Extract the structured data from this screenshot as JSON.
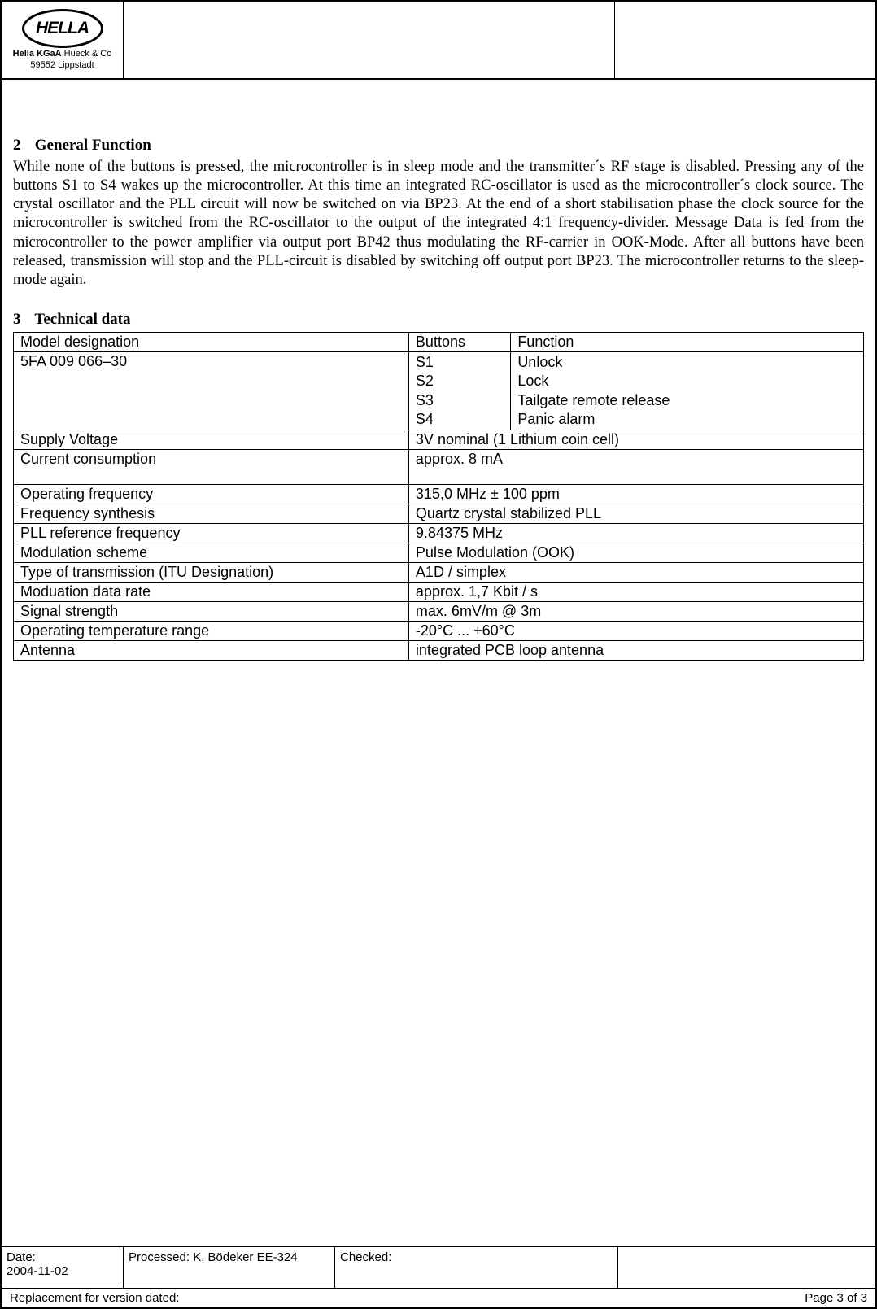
{
  "header": {
    "logo_label": "HELLA",
    "company_line1_bold": "Hella KGaA",
    "company_line1_rest": " Hueck & Co",
    "company_line2": "59552 Lippstadt"
  },
  "section2": {
    "number": "2",
    "title": "General Function",
    "body": "While none of the buttons is pressed, the microcontroller is in sleep mode and the transmitter´s RF stage is disabled. Pressing any of the buttons S1 to S4 wakes up the microcontroller. At this time an integrated RC-oscillator is used as the microcontroller´s clock source. The crystal oscillator and the PLL circuit will now be switched on via BP23. At the end of a short stabilisation phase the clock source for the microcontroller is switched from the RC-oscillator to the output of the integrated 4:1 frequency-divider. Message Data is fed from the microcontroller to the power amplifier via output port BP42 thus modulating the RF-carrier in OOK-Mode. After all buttons have been released, transmission will stop and the PLL-circuit is disabled by switching off output port BP23. The microcontroller returns to the sleep-mode again."
  },
  "section3": {
    "number": "3",
    "title": "Technical data",
    "row1": {
      "c1": "Model designation",
      "c2": "Buttons",
      "c3": "Function"
    },
    "row2": {
      "c1": "5FA 009 066–30",
      "buttons": "S1\nS2\nS3\nS4",
      "functions": "Unlock\nLock\nTailgate remote release\nPanic alarm"
    },
    "rows": [
      {
        "label": "Supply Voltage",
        "value": "3V nominal  (1 Lithium coin cell)"
      },
      {
        "label": "Current consumption",
        "value": "approx. 8 mA"
      },
      {
        "label": "Operating frequency",
        "value": "315,0 MHz ± 100 ppm"
      },
      {
        "label": "Frequency synthesis",
        "value": "Quartz crystal stabilized PLL"
      },
      {
        "label": "PLL reference frequency",
        "value": "9.84375 MHz"
      },
      {
        "label": "Modulation scheme",
        "value": "Pulse Modulation (OOK)"
      },
      {
        "label": "Type of transmission (ITU Designation)",
        "value": "A1D / simplex"
      },
      {
        "label": "Moduation data rate",
        "value": "approx. 1,7 Kbit / s"
      },
      {
        "label": "Signal strength",
        "value": "max. 6mV/m @ 3m"
      },
      {
        "label": "Operating temperature range",
        "value": "-20°C ... +60°C"
      },
      {
        "label": "Antenna",
        "value": "integrated PCB loop antenna"
      }
    ]
  },
  "footer": {
    "date_label": "Date:",
    "date_value": "2004-11-02",
    "processed": "Processed:  K. Bödeker EE-324",
    "checked": "Checked:",
    "replacement": "Replacement for version dated:",
    "page": "Page 3 of 3"
  }
}
